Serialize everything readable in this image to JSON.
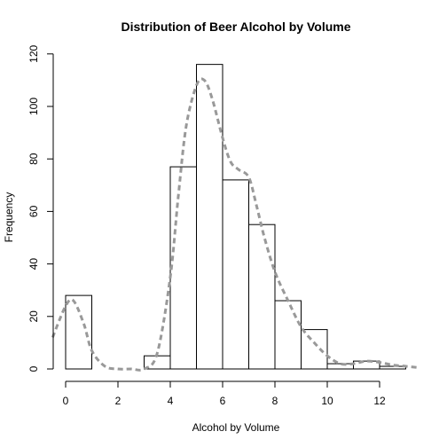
{
  "chart_data": {
    "type": "bar",
    "subtype": "histogram",
    "title": "Distribution of Beer Alcohol by Volume",
    "xlabel": "Alcohol by Volume",
    "ylabel": "Frequency",
    "bins": [
      {
        "start": 0,
        "end": 1,
        "count": 28
      },
      {
        "start": 1,
        "end": 2,
        "count": 0
      },
      {
        "start": 2,
        "end": 3,
        "count": 0
      },
      {
        "start": 3,
        "end": 4,
        "count": 5
      },
      {
        "start": 4,
        "end": 5,
        "count": 77
      },
      {
        "start": 5,
        "end": 6,
        "count": 116
      },
      {
        "start": 6,
        "end": 7,
        "count": 72
      },
      {
        "start": 7,
        "end": 8,
        "count": 55
      },
      {
        "start": 8,
        "end": 9,
        "count": 26
      },
      {
        "start": 9,
        "end": 10,
        "count": 15
      },
      {
        "start": 10,
        "end": 11,
        "count": 2
      },
      {
        "start": 11,
        "end": 12,
        "count": 3
      },
      {
        "start": 12,
        "end": 13,
        "count": 1
      }
    ],
    "density_curve": {
      "style": "dashed",
      "color": "#999999",
      "x": [
        -0.5,
        0,
        0.3,
        0.7,
        1,
        1.5,
        2,
        2.5,
        3,
        3.5,
        4,
        4.3,
        4.6,
        5,
        5.3,
        5.6,
        6,
        6.3,
        6.6,
        7,
        7.3,
        7.6,
        8,
        8.5,
        9,
        9.5,
        10,
        10.5,
        11,
        11.5,
        12,
        12.5,
        13,
        13.5
      ],
      "y": [
        12,
        24,
        26,
        17,
        7,
        1,
        0,
        0,
        0,
        6,
        35,
        65,
        92,
        108,
        110,
        103,
        88,
        79,
        76,
        73,
        62,
        50,
        37,
        26,
        16,
        10,
        5,
        2,
        2,
        3,
        2.5,
        1.5,
        1,
        0.5
      ]
    },
    "xlim": [
      -0.5,
      13.5
    ],
    "ylim": [
      0,
      125
    ],
    "x_ticks": [
      0,
      2,
      4,
      6,
      8,
      10,
      12
    ],
    "y_ticks": [
      0,
      20,
      40,
      60,
      80,
      100,
      120
    ],
    "grid": false,
    "colors": {
      "bar_fill": "#ffffff",
      "bar_stroke": "#000000",
      "density": "#999999"
    }
  }
}
